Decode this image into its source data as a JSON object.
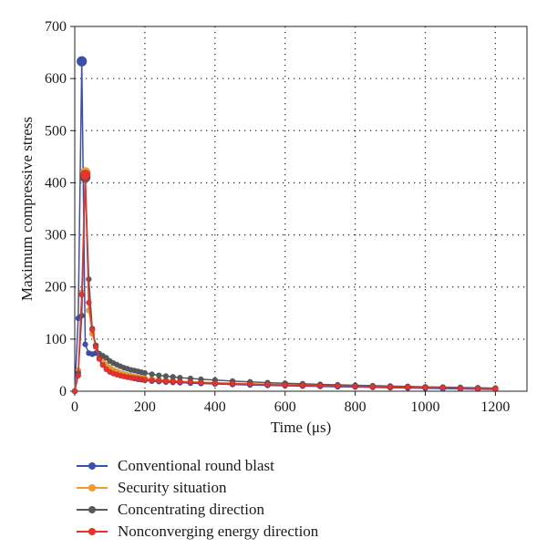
{
  "chart_data": {
    "type": "line",
    "title": "",
    "xlabel": "Time (μs)",
    "ylabel": "Maximum compressive stress",
    "xlim": [
      0,
      1290
    ],
    "ylim": [
      0,
      700
    ],
    "xticks": [
      0,
      200,
      400,
      600,
      800,
      1000,
      1200
    ],
    "yticks": [
      0,
      100,
      200,
      300,
      400,
      500,
      600,
      700
    ],
    "grid": true,
    "legend_position": "bottom",
    "series": [
      {
        "name": "Conventional round blast",
        "color": "#3b4fb0",
        "x": [
          0,
          10,
          20,
          30,
          40,
          50,
          60,
          70,
          80,
          90,
          100,
          110,
          120,
          130,
          140,
          150,
          160,
          170,
          180,
          190,
          200,
          220,
          240,
          260,
          280,
          300,
          330,
          360,
          400,
          450,
          500,
          550,
          600,
          650,
          700,
          750,
          800,
          850,
          900,
          950,
          1000,
          1050,
          1100,
          1150,
          1200
        ],
        "y": [
          0,
          140,
          633,
          90,
          73,
          71,
          73,
          65,
          55,
          48,
          43,
          39,
          35,
          32,
          30,
          28,
          26,
          24.5,
          23,
          22,
          21,
          19.5,
          18.5,
          17.5,
          17,
          16.5,
          15.5,
          14.8,
          14,
          13,
          12,
          11.2,
          10.5,
          9.8,
          9.2,
          8.6,
          8,
          7.4,
          6.8,
          6.2,
          5.6,
          5,
          4.5,
          4,
          3.5
        ]
      },
      {
        "name": "Security situation",
        "color": "#f39c2a",
        "x": [
          0,
          10,
          20,
          30,
          40,
          50,
          60,
          70,
          80,
          90,
          100,
          110,
          120,
          130,
          140,
          150,
          160,
          170,
          180,
          190,
          200,
          220,
          240,
          260,
          280,
          300,
          330,
          360,
          400,
          450,
          500,
          550,
          600,
          650,
          700,
          750,
          800,
          850,
          900,
          950,
          1000,
          1050,
          1100,
          1150,
          1200
        ],
        "y": [
          0,
          40,
          190,
          420,
          155,
          110,
          88,
          68,
          58,
          50,
          45,
          41,
          38,
          35,
          33,
          31,
          29.5,
          28,
          27,
          26,
          25,
          23.5,
          22.5,
          21.5,
          20.5,
          19.5,
          18.5,
          17.5,
          16.5,
          15.5,
          14.5,
          13.5,
          12.7,
          12,
          11.3,
          10.6,
          10,
          9.4,
          8.8,
          8.2,
          7.6,
          7,
          6.5,
          6,
          5.5
        ]
      },
      {
        "name": "Concentrating direction",
        "color": "#555a5f",
        "x": [
          0,
          10,
          20,
          30,
          40,
          50,
          60,
          70,
          80,
          90,
          100,
          110,
          120,
          130,
          140,
          150,
          160,
          170,
          180,
          190,
          200,
          220,
          240,
          260,
          280,
          300,
          330,
          360,
          400,
          450,
          500,
          550,
          600,
          650,
          700,
          750,
          800,
          850,
          900,
          950,
          1000,
          1050,
          1100,
          1150,
          1200
        ],
        "y": [
          0,
          35,
          145,
          410,
          215,
          120,
          88,
          72,
          68,
          64,
          58,
          54,
          51,
          48,
          45,
          43,
          41,
          39.5,
          38,
          36.5,
          35,
          32.5,
          30.5,
          29,
          27.5,
          26,
          24.5,
          23,
          21.5,
          19.5,
          18,
          16.5,
          15.3,
          14.2,
          13.2,
          12.3,
          11.4,
          10.6,
          9.8,
          9.1,
          8.4,
          7.8,
          7.2,
          6.6,
          6
        ]
      },
      {
        "name": "Nonconverging energy direction",
        "color": "#e8322e",
        "x": [
          0,
          10,
          20,
          30,
          40,
          50,
          60,
          70,
          80,
          90,
          100,
          110,
          120,
          130,
          140,
          150,
          160,
          170,
          180,
          190,
          200,
          220,
          240,
          260,
          280,
          300,
          330,
          360,
          400,
          450,
          500,
          550,
          600,
          650,
          700,
          750,
          800,
          850,
          900,
          950,
          1000,
          1050,
          1100,
          1150,
          1200
        ],
        "y": [
          0,
          30,
          185,
          415,
          170,
          118,
          85,
          62,
          50,
          42,
          37,
          34,
          32,
          30,
          28.5,
          27,
          26,
          25,
          24,
          23,
          22,
          21,
          20,
          19.2,
          18.5,
          18,
          17.2,
          16.5,
          15.5,
          14.5,
          13.6,
          12.8,
          12,
          11.3,
          10.6,
          10,
          9.4,
          8.8,
          8.2,
          7.6,
          7,
          6.5,
          6,
          5.5,
          5
        ]
      }
    ]
  }
}
